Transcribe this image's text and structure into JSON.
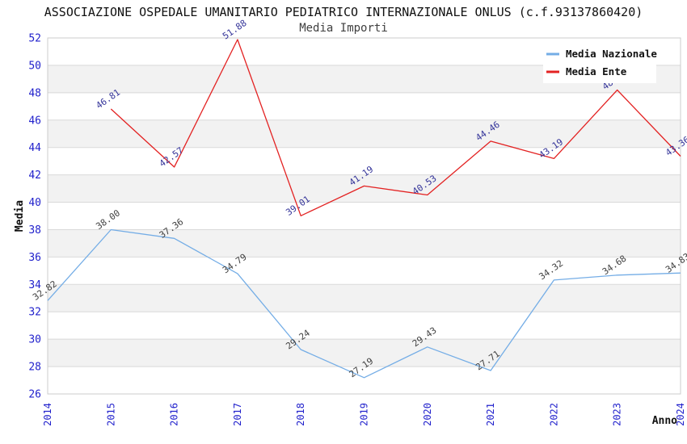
{
  "page": {
    "title": "ASSOCIAZIONE OSPEDALE UMANITARIO PEDIATRICO INTERNAZIONALE ONLUS (c.f.93137860420)",
    "subtitle": "Media Importi"
  },
  "chart_data": {
    "type": "line",
    "categories": [
      "2014",
      "2015",
      "2016",
      "2017",
      "2018",
      "2019",
      "2020",
      "2021",
      "2022",
      "2023",
      "2024"
    ],
    "xlabel": "Anno",
    "ylabel": "Media",
    "ylim": [
      26,
      52
    ],
    "ytick_step": 2,
    "grid": true,
    "alternating_bands": true,
    "legend_position": "top-right",
    "series": [
      {
        "name": "Media Nazionale",
        "color": "#74ade6",
        "label_color": "#404040",
        "values": [
          32.82,
          38.0,
          37.36,
          34.79,
          29.24,
          27.19,
          29.43,
          27.71,
          34.32,
          34.68,
          34.83
        ]
      },
      {
        "name": "Media Ente",
        "color": "#e32222",
        "label_color": "#333399",
        "values": [
          null,
          46.81,
          42.57,
          51.88,
          39.01,
          41.19,
          40.53,
          44.46,
          43.19,
          48.2,
          43.36
        ],
        "hidden_label_indexes": [
          9
        ]
      }
    ]
  },
  "styles": {
    "tick_color": "#2222cc",
    "band_color": "#f2f2f2",
    "grid_color": "#d9d9d9",
    "border_color": "#cccccc",
    "axis_title_color": "#111111",
    "legend_bg": "#ffffff"
  }
}
